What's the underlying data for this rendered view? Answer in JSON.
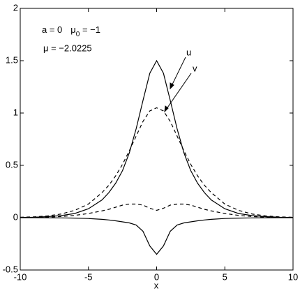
{
  "chart_data": {
    "type": "line",
    "x": [
      -10,
      -9,
      -8,
      -7,
      -6,
      -5,
      -4,
      -3.5,
      -3,
      -2.5,
      -2,
      -1.5,
      -1,
      -0.5,
      0,
      0.5,
      1,
      1.5,
      2,
      2.5,
      3,
      3.5,
      4,
      5,
      6,
      7,
      8,
      9,
      10
    ],
    "series": [
      {
        "color": "#000000",
        "dash": false,
        "values": [
          0.002,
          0.004,
          0.01,
          0.02,
          0.04,
          0.085,
          0.17,
          0.24,
          0.33,
          0.45,
          0.62,
          0.85,
          1.12,
          1.38,
          1.5,
          1.38,
          1.12,
          0.85,
          0.62,
          0.45,
          0.33,
          0.24,
          0.17,
          0.085,
          0.04,
          0.02,
          0.01,
          0.004,
          0.002
        ]
      },
      {
        "color": "#000000",
        "dash": true,
        "values": [
          0.004,
          0.008,
          0.017,
          0.035,
          0.07,
          0.13,
          0.24,
          0.31,
          0.4,
          0.51,
          0.64,
          0.78,
          0.92,
          1.02,
          1.05,
          1.02,
          0.92,
          0.78,
          0.64,
          0.51,
          0.4,
          0.31,
          0.24,
          0.13,
          0.07,
          0.035,
          0.017,
          0.008,
          0.004
        ]
      },
      {
        "color": "#000000",
        "dash": false,
        "values": [
          0,
          0,
          -0.001,
          -0.002,
          -0.004,
          -0.008,
          -0.016,
          -0.022,
          -0.03,
          -0.04,
          -0.05,
          -0.07,
          -0.13,
          -0.27,
          -0.35,
          -0.27,
          -0.13,
          -0.07,
          -0.05,
          -0.04,
          -0.03,
          -0.022,
          -0.016,
          -0.008,
          -0.004,
          -0.002,
          -0.001,
          0,
          0
        ]
      },
      {
        "color": "#000000",
        "dash": true,
        "values": [
          0.001,
          0.002,
          0.005,
          0.011,
          0.022,
          0.04,
          0.065,
          0.08,
          0.1,
          0.12,
          0.13,
          0.13,
          0.12,
          0.09,
          0.07,
          0.09,
          0.12,
          0.13,
          0.13,
          0.12,
          0.1,
          0.08,
          0.065,
          0.04,
          0.022,
          0.011,
          0.005,
          0.002,
          0.001
        ]
      }
    ],
    "xlim": [
      -10,
      10
    ],
    "xticks": [
      -10,
      -5,
      0,
      5,
      10
    ],
    "ylim": [
      -0.5,
      2
    ],
    "yticks": [
      -0.5,
      0,
      0.5,
      1,
      1.5,
      2
    ],
    "x_label": "x",
    "params_line1": [
      "a = 0",
      "μ",
      "0",
      " = −1"
    ],
    "params_line2": "μ = −2.0225",
    "curve_labels": [
      "u",
      "v"
    ]
  }
}
